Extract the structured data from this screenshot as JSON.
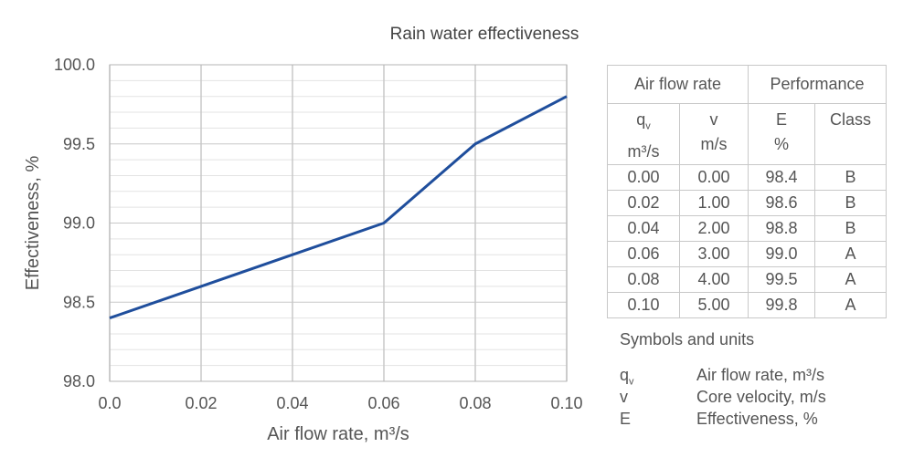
{
  "chart_data": {
    "type": "line",
    "title": "Rain water effectiveness",
    "xlabel": "Air flow rate, m³/s",
    "ylabel": "Effectiveness, %",
    "x": [
      0.0,
      0.02,
      0.04,
      0.06,
      0.08,
      0.1
    ],
    "xticks": [
      "0.0",
      "0.02",
      "0.04",
      "0.06",
      "0.08",
      "0.10"
    ],
    "yticks": [
      "98.0",
      "98.5",
      "99.0",
      "99.5",
      "100.0"
    ],
    "xlim": [
      0.0,
      0.1
    ],
    "ylim": [
      98.0,
      100.0
    ],
    "grid": true,
    "series": [
      {
        "name": "Effectiveness",
        "color": "#1f4e9c",
        "values": [
          98.4,
          98.6,
          98.8,
          99.0,
          99.5,
          99.8
        ]
      }
    ]
  },
  "table": {
    "group_headers": [
      "Air flow rate",
      "Performance"
    ],
    "columns": [
      {
        "sym": "q",
        "sub": "v",
        "unit": "m³/s"
      },
      {
        "sym": "v",
        "unit": "m/s"
      },
      {
        "sym": "E",
        "unit": "%"
      },
      {
        "sym": "Class",
        "unit": ""
      }
    ],
    "rows": [
      [
        "0.00",
        "0.00",
        "98.4",
        "B"
      ],
      [
        "0.02",
        "1.00",
        "98.6",
        "B"
      ],
      [
        "0.04",
        "2.00",
        "98.8",
        "B"
      ],
      [
        "0.06",
        "3.00",
        "99.0",
        "A"
      ],
      [
        "0.08",
        "4.00",
        "99.5",
        "A"
      ],
      [
        "0.10",
        "5.00",
        "99.8",
        "A"
      ]
    ]
  },
  "legend": {
    "title": "Symbols and units",
    "items": [
      {
        "sym": "q",
        "sub": "v",
        "desc": "Air flow rate, m³/s"
      },
      {
        "sym": "v",
        "desc": "Core velocity, m/s"
      },
      {
        "sym": "E",
        "desc": "Effectiveness, %"
      }
    ]
  }
}
